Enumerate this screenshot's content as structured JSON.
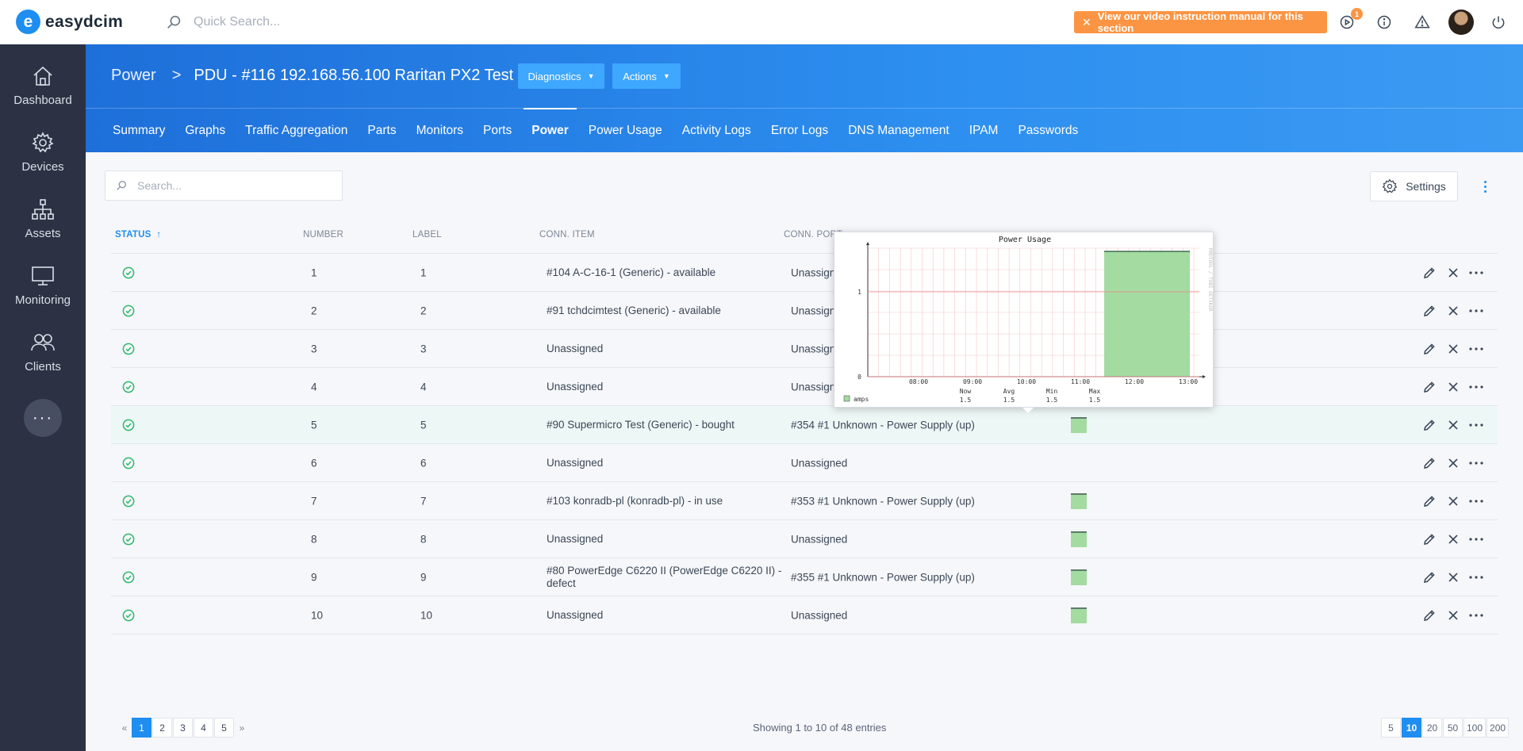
{
  "app": {
    "logo_letter": "e",
    "logo_text": "easydcim"
  },
  "topbar": {
    "search_placeholder": "Quick Search...",
    "video_banner": "View our video instruction manual for this section",
    "notification_count": "1"
  },
  "sidebar": {
    "items": [
      {
        "label": "Dashboard",
        "icon": "home-icon"
      },
      {
        "label": "Devices",
        "icon": "gear-icon"
      },
      {
        "label": "Assets",
        "icon": "hierarchy-icon"
      },
      {
        "label": "Monitoring",
        "icon": "monitor-icon"
      },
      {
        "label": "Clients",
        "icon": "users-icon"
      }
    ],
    "more": "···"
  },
  "header": {
    "breadcrumb_root": "Power",
    "breadcrumb_sep": ">",
    "title": "PDU - #116 192.168.56.100 Raritan PX2 Test PDU",
    "diagnostics_label": "Diagnostics",
    "actions_label": "Actions",
    "tabs": [
      "Summary",
      "Graphs",
      "Traffic Aggregation",
      "Parts",
      "Monitors",
      "Ports",
      "Power",
      "Power Usage",
      "Activity Logs",
      "Error Logs",
      "DNS Management",
      "IPAM",
      "Passwords"
    ],
    "active_tab": "Power"
  },
  "toolbar": {
    "search_placeholder": "Search...",
    "settings_label": "Settings"
  },
  "table": {
    "columns": {
      "status": "STATUS",
      "number": "NUMBER",
      "label": "LABEL",
      "conn_item": "CONN. ITEM",
      "conn_port": "CONN. PORT"
    },
    "rows": [
      {
        "number": "1",
        "label": "1",
        "conn_item": "#104 A-C-16-1 (Generic) - available",
        "conn_port": "Unassigned",
        "spark": false
      },
      {
        "number": "2",
        "label": "2",
        "conn_item": "#91 tchdcimtest (Generic) - available",
        "conn_port": "Unassigned",
        "spark": false
      },
      {
        "number": "3",
        "label": "3",
        "conn_item": "Unassigned",
        "conn_port": "Unassigned",
        "spark": false
      },
      {
        "number": "4",
        "label": "4",
        "conn_item": "Unassigned",
        "conn_port": "Unassigned",
        "spark": false
      },
      {
        "number": "5",
        "label": "5",
        "conn_item": "#90 Supermicro Test (Generic) - bought",
        "conn_port": "#354 #1 Unknown - Power Supply (up)",
        "spark": true
      },
      {
        "number": "6",
        "label": "6",
        "conn_item": "Unassigned",
        "conn_port": "Unassigned",
        "spark": false
      },
      {
        "number": "7",
        "label": "7",
        "conn_item": "#103 konradb-pl (konradb-pl) - in use",
        "conn_port": "#353 #1 Unknown - Power Supply (up)",
        "spark": true
      },
      {
        "number": "8",
        "label": "8",
        "conn_item": "Unassigned",
        "conn_port": "Unassigned",
        "spark": true
      },
      {
        "number": "9",
        "label": "9",
        "conn_item": "#80 PowerEdge C6220 II (PowerEdge C6220 II) - defect",
        "conn_port": "#355 #1 Unknown - Power Supply (up)",
        "spark": true
      },
      {
        "number": "10",
        "label": "10",
        "conn_item": "Unassigned",
        "conn_port": "Unassigned",
        "spark": true
      }
    ]
  },
  "popup": {
    "title": "Power Usage",
    "side_text": "RRDTOOL / TOBI OETIKER",
    "y_ticks": [
      "0",
      "1"
    ],
    "x_ticks": [
      "08:00",
      "09:00",
      "10:00",
      "11:00",
      "12:00",
      "13:00"
    ],
    "legend_label": "amps",
    "stat_headers": [
      "Now",
      "Avg",
      "Min",
      "Max"
    ],
    "stat_values": [
      "1.5",
      "1.5",
      "1.5",
      "1.5"
    ],
    "fill_color": "#a3dba0"
  },
  "pagination": {
    "prev": "«",
    "next": "»",
    "pages": [
      "1",
      "2",
      "3",
      "4",
      "5"
    ],
    "active_page": "1",
    "showing_text": "Showing 1 to 10 of 48 entries",
    "sizes": [
      "5",
      "10",
      "20",
      "50",
      "100",
      "200"
    ],
    "active_size": "10"
  }
}
